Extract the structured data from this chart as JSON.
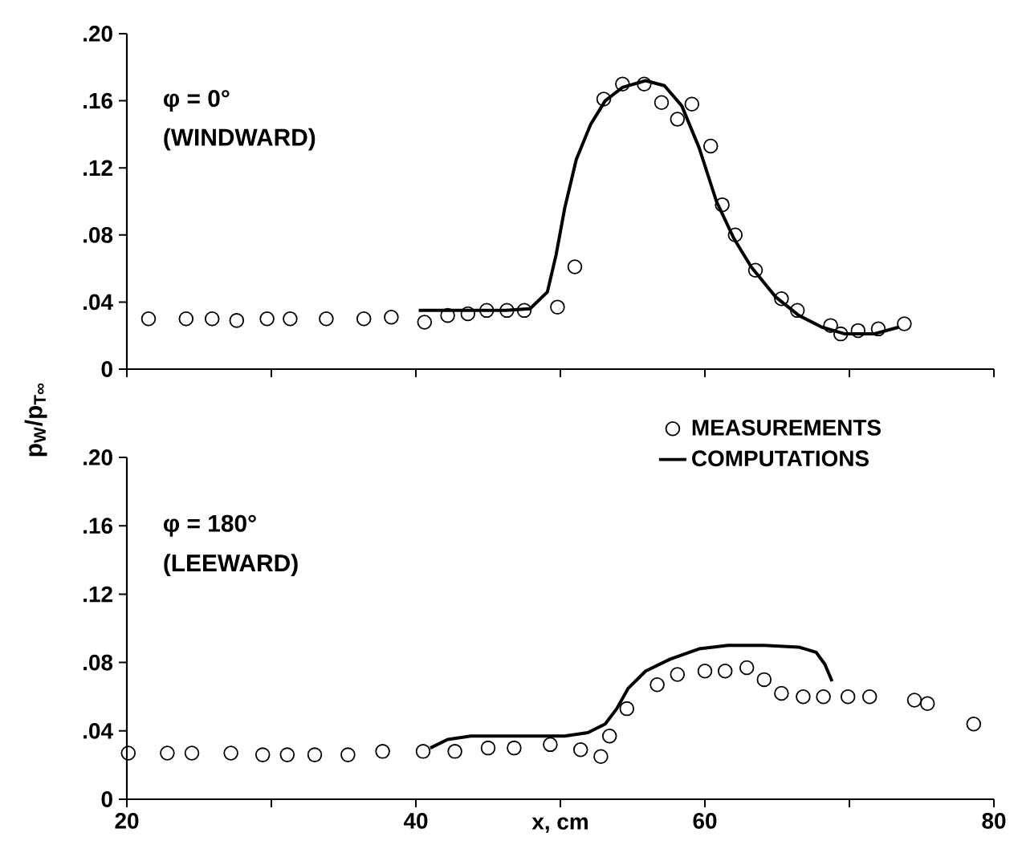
{
  "chart_data": [
    {
      "type": "scatter",
      "annotations": [
        "φ = 0°",
        "(WINDWARD)"
      ],
      "xlim": [
        20,
        80
      ],
      "ylim": [
        0,
        0.2
      ],
      "xticks": [
        {
          "value": 20,
          "label": null
        },
        {
          "value": 30,
          "label": null
        },
        {
          "value": 40,
          "label": null
        },
        {
          "value": 50,
          "label": null
        },
        {
          "value": 60,
          "label": null
        },
        {
          "value": 70,
          "label": null
        },
        {
          "value": 80,
          "label": null
        }
      ],
      "yticks": [
        0,
        {
          "value": 0.04,
          "label": ".04"
        },
        {
          "value": 0.08,
          "label": ".08"
        },
        {
          "value": 0.12,
          "label": ".12"
        },
        {
          "value": 0.16,
          "label": ".16"
        },
        {
          "value": 0.2,
          "label": ".20"
        }
      ],
      "tick_labels": "y",
      "grid": false,
      "legend": false,
      "series": [
        {
          "marker": "circle",
          "color": "#000000",
          "x": [
            21.5,
            24.1,
            25.9,
            27.6,
            29.7,
            31.3,
            33.8,
            36.4,
            38.3,
            40.6,
            42.2,
            43.6,
            44.9,
            46.3,
            47.5,
            49.8,
            51.0,
            53.0,
            54.3,
            55.8,
            57.0,
            58.1,
            59.1,
            60.4,
            61.2,
            62.1,
            63.5,
            65.3,
            66.4,
            68.7,
            69.4,
            70.6,
            72.0,
            73.8
          ],
          "values": [
            0.03,
            0.03,
            0.03,
            0.029,
            0.03,
            0.03,
            0.03,
            0.03,
            0.031,
            0.028,
            0.032,
            0.033,
            0.035,
            0.035,
            0.035,
            0.037,
            0.061,
            0.161,
            0.17,
            0.17,
            0.159,
            0.149,
            0.158,
            0.133,
            0.098,
            0.08,
            0.059,
            0.042,
            0.035,
            0.026,
            0.021,
            0.023,
            0.024,
            0.027
          ]
        },
        {
          "type": "line",
          "marker": "none",
          "line_style": "solid",
          "color": "#000000",
          "x": [
            40.2,
            41.8,
            46.2,
            47.9,
            49.1,
            49.7,
            50.3,
            51.1,
            52.1,
            53.1,
            54.3,
            55.9,
            57.2,
            58.4,
            59.6,
            60.8,
            62.0,
            63.2,
            64.9,
            66.5,
            68.1,
            69.7,
            71.7,
            73.4
          ],
          "values": [
            0.035,
            0.035,
            0.035,
            0.036,
            0.046,
            0.068,
            0.096,
            0.125,
            0.146,
            0.16,
            0.168,
            0.172,
            0.169,
            0.157,
            0.132,
            0.1,
            0.078,
            0.061,
            0.043,
            0.032,
            0.025,
            0.021,
            0.021,
            0.025
          ]
        }
      ]
    },
    {
      "type": "scatter",
      "xlabel": "x, cm",
      "ylabel": "p$_{W}$/p$_{T∞}$",
      "annotations": [
        "φ = 180°",
        "(LEEWARD)"
      ],
      "xlim": [
        20,
        80
      ],
      "ylim": [
        0,
        0.2
      ],
      "xticks": [
        20,
        {
          "value": 30,
          "label": null
        },
        40,
        {
          "value": 50,
          "label": null
        },
        60,
        {
          "value": 70,
          "label": null
        },
        80
      ],
      "yticks": [
        0,
        {
          "value": 0.04,
          "label": ".04"
        },
        {
          "value": 0.08,
          "label": ".08"
        },
        {
          "value": 0.12,
          "label": ".12"
        },
        {
          "value": 0.16,
          "label": ".16"
        },
        {
          "value": 0.2,
          "label": ".20"
        }
      ],
      "grid": false,
      "legend": "top right",
      "series": [
        {
          "name": "MEASUREMENTS",
          "marker": "circle",
          "color": "#000000",
          "x": [
            20.1,
            22.8,
            24.5,
            27.2,
            29.4,
            31.1,
            33.0,
            35.3,
            37.7,
            40.5,
            42.7,
            45.0,
            46.8,
            49.3,
            51.4,
            52.8,
            53.4,
            54.6,
            56.7,
            58.1,
            60.0,
            61.4,
            62.9,
            64.1,
            65.3,
            66.8,
            68.2,
            69.9,
            71.4,
            74.5,
            75.4,
            78.6
          ],
          "values": [
            0.027,
            0.027,
            0.027,
            0.027,
            0.026,
            0.026,
            0.026,
            0.026,
            0.028,
            0.028,
            0.028,
            0.03,
            0.03,
            0.032,
            0.029,
            0.025,
            0.037,
            0.053,
            0.067,
            0.073,
            0.075,
            0.075,
            0.077,
            0.07,
            0.062,
            0.06,
            0.06,
            0.06,
            0.06,
            0.058,
            0.056,
            0.044
          ]
        },
        {
          "type": "line",
          "name": "COMPUTATIONS",
          "marker": "none",
          "line_style": "solid",
          "color": "#000000",
          "x": [
            41.0,
            42.2,
            43.8,
            46.2,
            50.3,
            51.9,
            53.1,
            53.9,
            54.7,
            55.9,
            57.6,
            59.6,
            61.6,
            64.1,
            66.5,
            67.7,
            68.3,
            68.8
          ],
          "values": [
            0.03,
            0.035,
            0.037,
            0.037,
            0.037,
            0.039,
            0.044,
            0.053,
            0.065,
            0.075,
            0.082,
            0.088,
            0.09,
            0.09,
            0.089,
            0.086,
            0.079,
            0.069
          ]
        }
      ]
    }
  ]
}
